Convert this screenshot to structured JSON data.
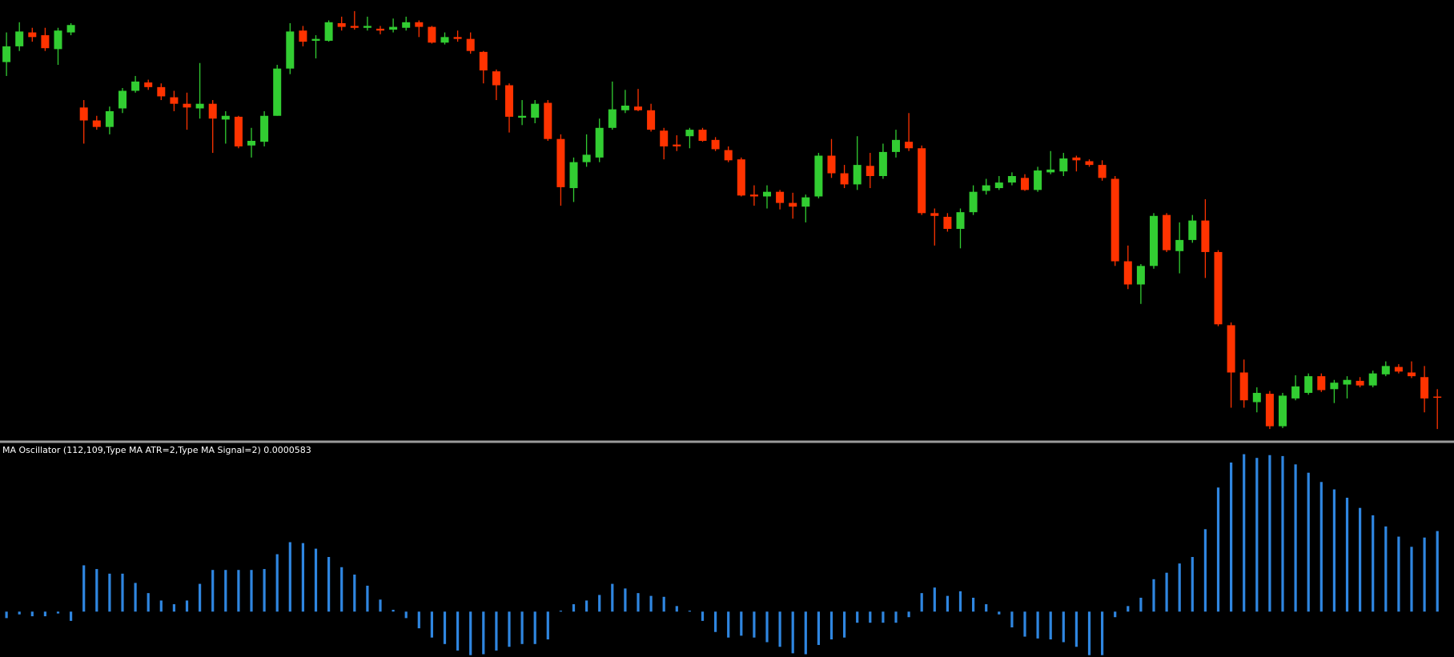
{
  "chart_data": [
    {
      "type": "candlestick",
      "up_color": "#32cd32",
      "down_color": "#ff3300",
      "ylim": [
        5,
        480
      ],
      "open": [
        413,
        430,
        445,
        442,
        427,
        445,
        364,
        350,
        343,
        363,
        382,
        391,
        386,
        375,
        368,
        363,
        368,
        351,
        354,
        323,
        327,
        355,
        406,
        447,
        436,
        436,
        455,
        452,
        450,
        449,
        448,
        450,
        456,
        451,
        434,
        440,
        438,
        424,
        403,
        388,
        353,
        353,
        369,
        330,
        277,
        305,
        310,
        342,
        361,
        365,
        361,
        339,
        324,
        333,
        340,
        329,
        318,
        308,
        270,
        268,
        273,
        261,
        257,
        268,
        312,
        293,
        281,
        301,
        290,
        316,
        327,
        320,
        250,
        246,
        233,
        251,
        274,
        277,
        283,
        288,
        275,
        294,
        295,
        310,
        306,
        302,
        287,
        198,
        173,
        193,
        248,
        209,
        221,
        242,
        208,
        129,
        78,
        46,
        55,
        20,
        50,
        56,
        74,
        60,
        65,
        69,
        64,
        76,
        84,
        78,
        73,
        52
      ],
      "high": [
        445,
        456,
        450,
        450,
        450,
        455,
        372,
        355,
        365,
        385,
        398,
        394,
        390,
        382,
        380,
        412,
        372,
        360,
        355,
        342,
        360,
        410,
        455,
        452,
        442,
        458,
        462,
        468,
        462,
        452,
        460,
        462,
        458,
        452,
        445,
        447,
        445,
        425,
        405,
        390,
        372,
        372,
        372,
        335,
        310,
        335,
        352,
        392,
        383,
        384,
        368,
        342,
        334,
        342,
        342,
        332,
        322,
        310,
        280,
        280,
        275,
        272,
        270,
        315,
        330,
        302,
        333,
        315,
        325,
        340,
        358,
        323,
        255,
        250,
        255,
        280,
        287,
        290,
        294,
        292,
        300,
        317,
        315,
        312,
        308,
        307,
        290,
        215,
        195,
        250,
        250,
        240,
        248,
        265,
        210,
        132,
        92,
        62,
        58,
        56,
        75,
        77,
        77,
        70,
        74,
        73,
        80,
        90,
        87,
        90,
        85,
        60
      ],
      "low": [
        398,
        425,
        435,
        425,
        410,
        442,
        325,
        340,
        335,
        358,
        380,
        383,
        372,
        360,
        340,
        352,
        315,
        325,
        320,
        310,
        322,
        355,
        400,
        430,
        417,
        435,
        447,
        448,
        447,
        443,
        445,
        447,
        440,
        433,
        432,
        435,
        422,
        390,
        372,
        337,
        345,
        347,
        328,
        258,
        262,
        300,
        305,
        340,
        358,
        360,
        338,
        308,
        317,
        320,
        327,
        317,
        305,
        268,
        258,
        255,
        254,
        244,
        240,
        266,
        288,
        277,
        275,
        277,
        287,
        310,
        317,
        248,
        215,
        230,
        212,
        248,
        270,
        275,
        280,
        274,
        273,
        292,
        290,
        295,
        300,
        285,
        193,
        168,
        152,
        190,
        208,
        185,
        218,
        180,
        128,
        40,
        40,
        35,
        17,
        18,
        48,
        54,
        57,
        45,
        50,
        62,
        62,
        74,
        77,
        72,
        35,
        17
      ],
      "close": [
        430,
        446,
        440,
        428,
        447,
        453,
        350,
        343,
        360,
        382,
        392,
        386,
        376,
        368,
        364,
        368,
        352,
        355,
        322,
        328,
        355,
        406,
        446,
        435,
        438,
        456,
        451,
        450,
        452,
        447,
        451,
        456,
        451,
        434,
        440,
        438,
        425,
        404,
        388,
        354,
        355,
        368,
        330,
        278,
        305,
        313,
        342,
        362,
        366,
        361,
        340,
        322,
        322,
        340,
        328,
        319,
        307,
        269,
        268,
        273,
        261,
        257,
        267,
        312,
        293,
        281,
        302,
        290,
        316,
        329,
        320,
        250,
        247,
        233,
        251,
        273,
        280,
        283,
        290,
        275,
        296,
        297,
        309,
        307,
        302,
        288,
        198,
        173,
        193,
        247,
        210,
        221,
        242,
        208,
        130,
        78,
        48,
        56,
        20,
        53,
        63,
        74,
        59,
        67,
        70,
        64,
        77,
        85,
        79,
        74,
        50,
        51
      ]
    },
    {
      "type": "bar",
      "title": "MA Oscillator (112,109,Type MA ATR=2,Type MA Signal=2) 0.0000583",
      "color": "#2f86e0",
      "ylim": [
        -49,
        180
      ],
      "values": [
        -7,
        -3,
        -5,
        -5,
        -2,
        -10,
        50,
        46,
        41,
        41,
        31,
        20,
        12,
        8,
        12,
        30,
        45,
        45,
        45,
        45,
        46,
        62,
        75,
        74,
        68,
        59,
        48,
        40,
        28,
        13,
        2,
        -7,
        -18,
        -28,
        -35,
        -42,
        -47,
        -46,
        -42,
        -38,
        -35,
        -35,
        -30,
        1,
        8,
        12,
        18,
        30,
        25,
        20,
        17,
        16,
        6,
        1,
        -10,
        -22,
        -28,
        -26,
        -28,
        -33,
        -38,
        -45,
        -46,
        -36,
        -30,
        -28,
        -12,
        -12,
        -12,
        -12,
        -6,
        20,
        26,
        17,
        22,
        15,
        8,
        -3,
        -17,
        -27,
        -29,
        -30,
        -33,
        -38,
        -47,
        -47,
        -6,
        6,
        15,
        35,
        42,
        52,
        59,
        89,
        134,
        161,
        170,
        166,
        169,
        168,
        159,
        150,
        140,
        132,
        123,
        112,
        104,
        92,
        81,
        70,
        80,
        87
      ]
    }
  ]
}
